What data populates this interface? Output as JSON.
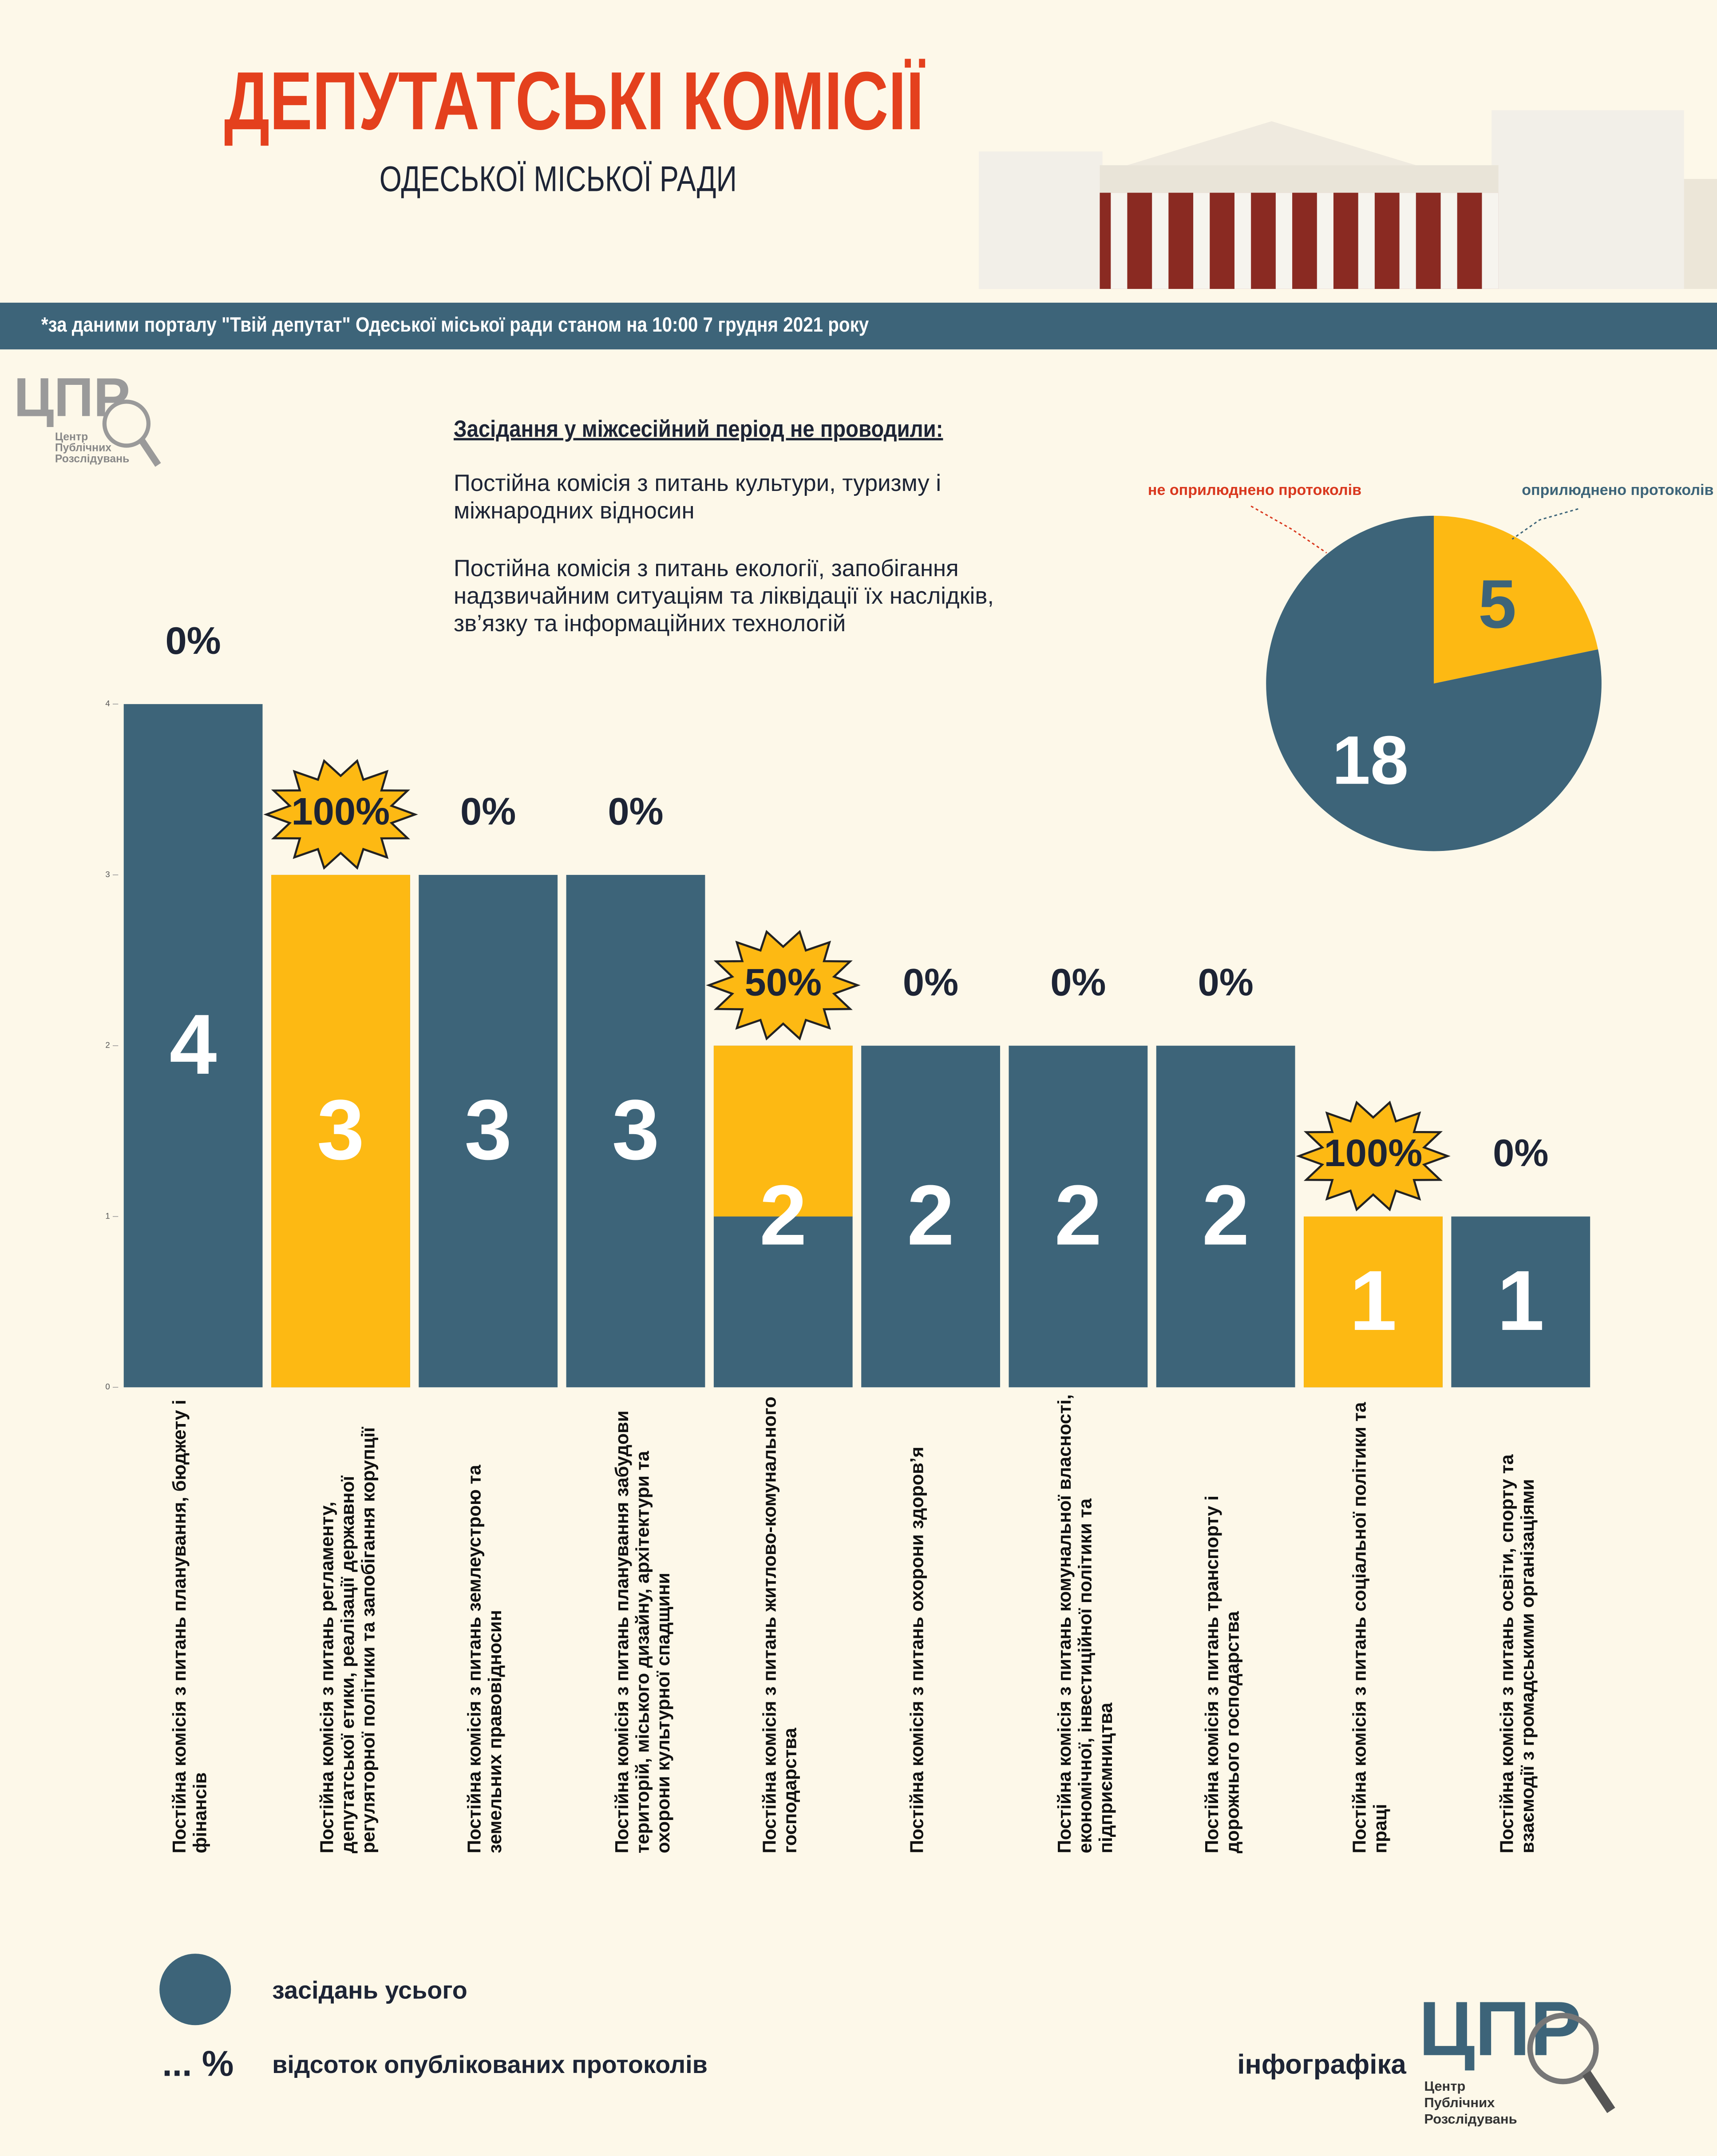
{
  "header": {
    "title": "ДЕПУТАТСЬКІ КОМІСІЇ",
    "subtitle": "ОДЕСЬКОЇ МІСЬКОЇ РАДИ",
    "source": "*за даними порталу \"Твій депутат\" Одеської міської ради станом на 10:00 7 грудня 2021 року"
  },
  "logo": {
    "mark": "ЦПР",
    "lines": [
      "Центр",
      "Публічних",
      "Розслідувань"
    ]
  },
  "note": {
    "heading": "Засідання у міжсесійний період не проводили:",
    "items": [
      "Постійна комісія з питань культури, туризму і міжнародних відносин",
      "Постійна комісія з питань екології, запобігання надзвичайним ситуаціям та ліквідації їх наслідків, зв’язку та інформаційних технологій"
    ]
  },
  "footer": "інфографіка",
  "chart_data": [
    {
      "type": "bar",
      "categories": [
        "Постійна комісія з питань планування, бюджету і фінансів",
        "Постійна комісія з питань регламенту, депутатської етики, реалізації державної регуляторної політики та запобігання корупції",
        "Постійна комісія з питань землеустрою та земельних правовідносин",
        "Постійна комісія з питань планування забудови територій, міського дизайну, архітектури та охорони культурної спадщини",
        "Постійна комісія з питань житлово-комунального господарства",
        "Постійна комісія з питань охорони здоров’я",
        "Постійна комісія з питань комунальної власності, економічної, інвестиційної політики та підприємництва",
        "Постійна комісія з питань транспорту і дорожнього господарства",
        "Постійна комісія з питань соціальної політики та праці",
        "Постійна комісія з питань освіти, спорту та взаємодії з громадськими організаціями"
      ],
      "series": [
        {
          "name": "засідань усього",
          "color": "#3d6479",
          "values": [
            4,
            3,
            3,
            3,
            2,
            2,
            2,
            2,
            1,
            1
          ]
        },
        {
          "color": "#fdb913",
          "values": [
            0,
            3,
            0,
            0,
            1,
            0,
            0,
            0,
            1,
            0
          ]
        }
      ],
      "percent_labels": [
        "0%",
        "100%",
        "0%",
        "0%",
        "50%",
        "0%",
        "0%",
        "0%",
        "100%",
        "0%"
      ],
      "percent_legend": {
        "symbol": "... %",
        "label": "відсоток опублікованих протоколів"
      },
      "ylim": [
        0,
        4
      ],
      "yticks": [
        0,
        1,
        2,
        3,
        4
      ]
    },
    {
      "type": "pie",
      "labels": [
        "оприлюднено протоколів",
        "не оприлюднено протоколів"
      ],
      "values": [
        5,
        18
      ],
      "colors": [
        "#fdb913",
        "#3d6479"
      ]
    }
  ]
}
